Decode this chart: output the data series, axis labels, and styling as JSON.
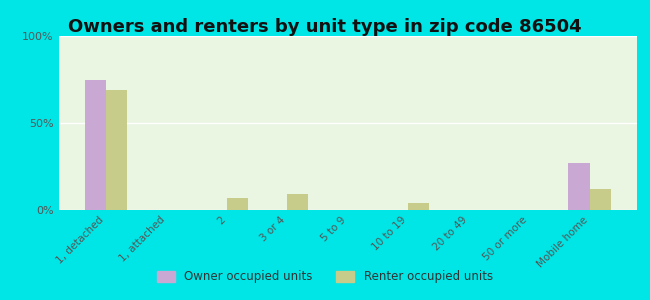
{
  "title": "Owners and renters by unit type in zip code 86504",
  "categories": [
    "1, detached",
    "1, attached",
    "2",
    "3 or 4",
    "5 to 9",
    "10 to 19",
    "20 to 49",
    "50 or more",
    "Mobile home"
  ],
  "owner_values": [
    75,
    0,
    0,
    0,
    0,
    0,
    0,
    0,
    27
  ],
  "renter_values": [
    69,
    0,
    7,
    9,
    0,
    4,
    0,
    0,
    12
  ],
  "owner_color": "#c9a8d4",
  "renter_color": "#c8cc8a",
  "bg_color": "#00e5e5",
  "plot_bg_color": "#eaf5e2",
  "ylim": [
    0,
    100
  ],
  "yticks": [
    0,
    50,
    100
  ],
  "ytick_labels": [
    "0%",
    "50%",
    "100%"
  ],
  "title_fontsize": 13,
  "legend_owner": "Owner occupied units",
  "legend_renter": "Renter occupied units",
  "bar_width": 0.35
}
